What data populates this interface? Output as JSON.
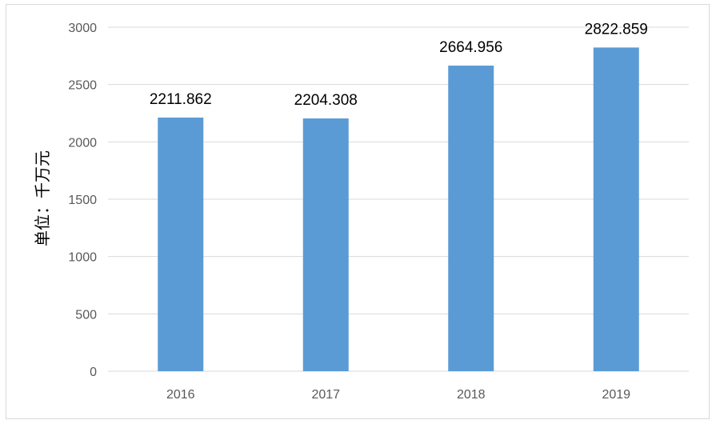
{
  "chart_data": {
    "type": "bar",
    "categories": [
      "2016",
      "2017",
      "2018",
      "2019"
    ],
    "values": [
      2211.862,
      2204.308,
      2664.956,
      2822.859
    ],
    "data_labels": [
      "2211.862",
      "2204.308",
      "2664.956",
      "2822.859"
    ],
    "ylabel": "单位：千万元",
    "xlabel": "",
    "title": "",
    "ylim": [
      0,
      3000
    ],
    "yticks": [
      "0",
      "500",
      "1000",
      "1500",
      "2000",
      "2500",
      "3000"
    ],
    "grid": true,
    "legend": "none",
    "bar_color": "#5b9bd5",
    "grid_color": "#d9d9d9"
  }
}
